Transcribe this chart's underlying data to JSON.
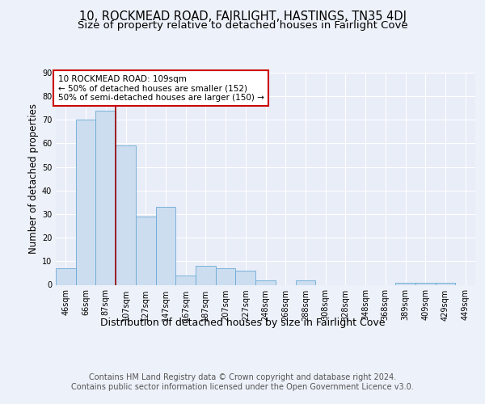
{
  "title": "10, ROCKMEAD ROAD, FAIRLIGHT, HASTINGS, TN35 4DJ",
  "subtitle": "Size of property relative to detached houses in Fairlight Cove",
  "xlabel": "Distribution of detached houses by size in Fairlight Cove",
  "ylabel": "Number of detached properties",
  "bin_labels": [
    "46sqm",
    "66sqm",
    "87sqm",
    "107sqm",
    "127sqm",
    "147sqm",
    "167sqm",
    "187sqm",
    "207sqm",
    "227sqm",
    "248sqm",
    "268sqm",
    "288sqm",
    "308sqm",
    "328sqm",
    "348sqm",
    "368sqm",
    "389sqm",
    "409sqm",
    "429sqm",
    "449sqm"
  ],
  "bar_heights": [
    7,
    70,
    74,
    59,
    29,
    33,
    4,
    8,
    7,
    6,
    2,
    0,
    2,
    0,
    0,
    0,
    0,
    1,
    1,
    1,
    0
  ],
  "bar_color": "#ccddf0",
  "bar_edge_color": "#6aaad4",
  "vline_x_index": 3,
  "vline_color": "#990000",
  "annotation_text": "10 ROCKMEAD ROAD: 109sqm\n← 50% of detached houses are smaller (152)\n50% of semi-detached houses are larger (150) →",
  "annotation_box_color": "#ffffff",
  "annotation_box_edge_color": "#cc0000",
  "ylim": [
    0,
    90
  ],
  "yticks": [
    0,
    10,
    20,
    30,
    40,
    50,
    60,
    70,
    80,
    90
  ],
  "footer_text": "Contains HM Land Registry data © Crown copyright and database right 2024.\nContains public sector information licensed under the Open Government Licence v3.0.",
  "bg_color": "#edf1f9",
  "plot_bg_color": "#e8edf8",
  "title_fontsize": 10.5,
  "subtitle_fontsize": 9.5,
  "xlabel_fontsize": 9,
  "ylabel_fontsize": 8.5,
  "tick_fontsize": 7,
  "footer_fontsize": 7,
  "annot_fontsize": 7.5
}
